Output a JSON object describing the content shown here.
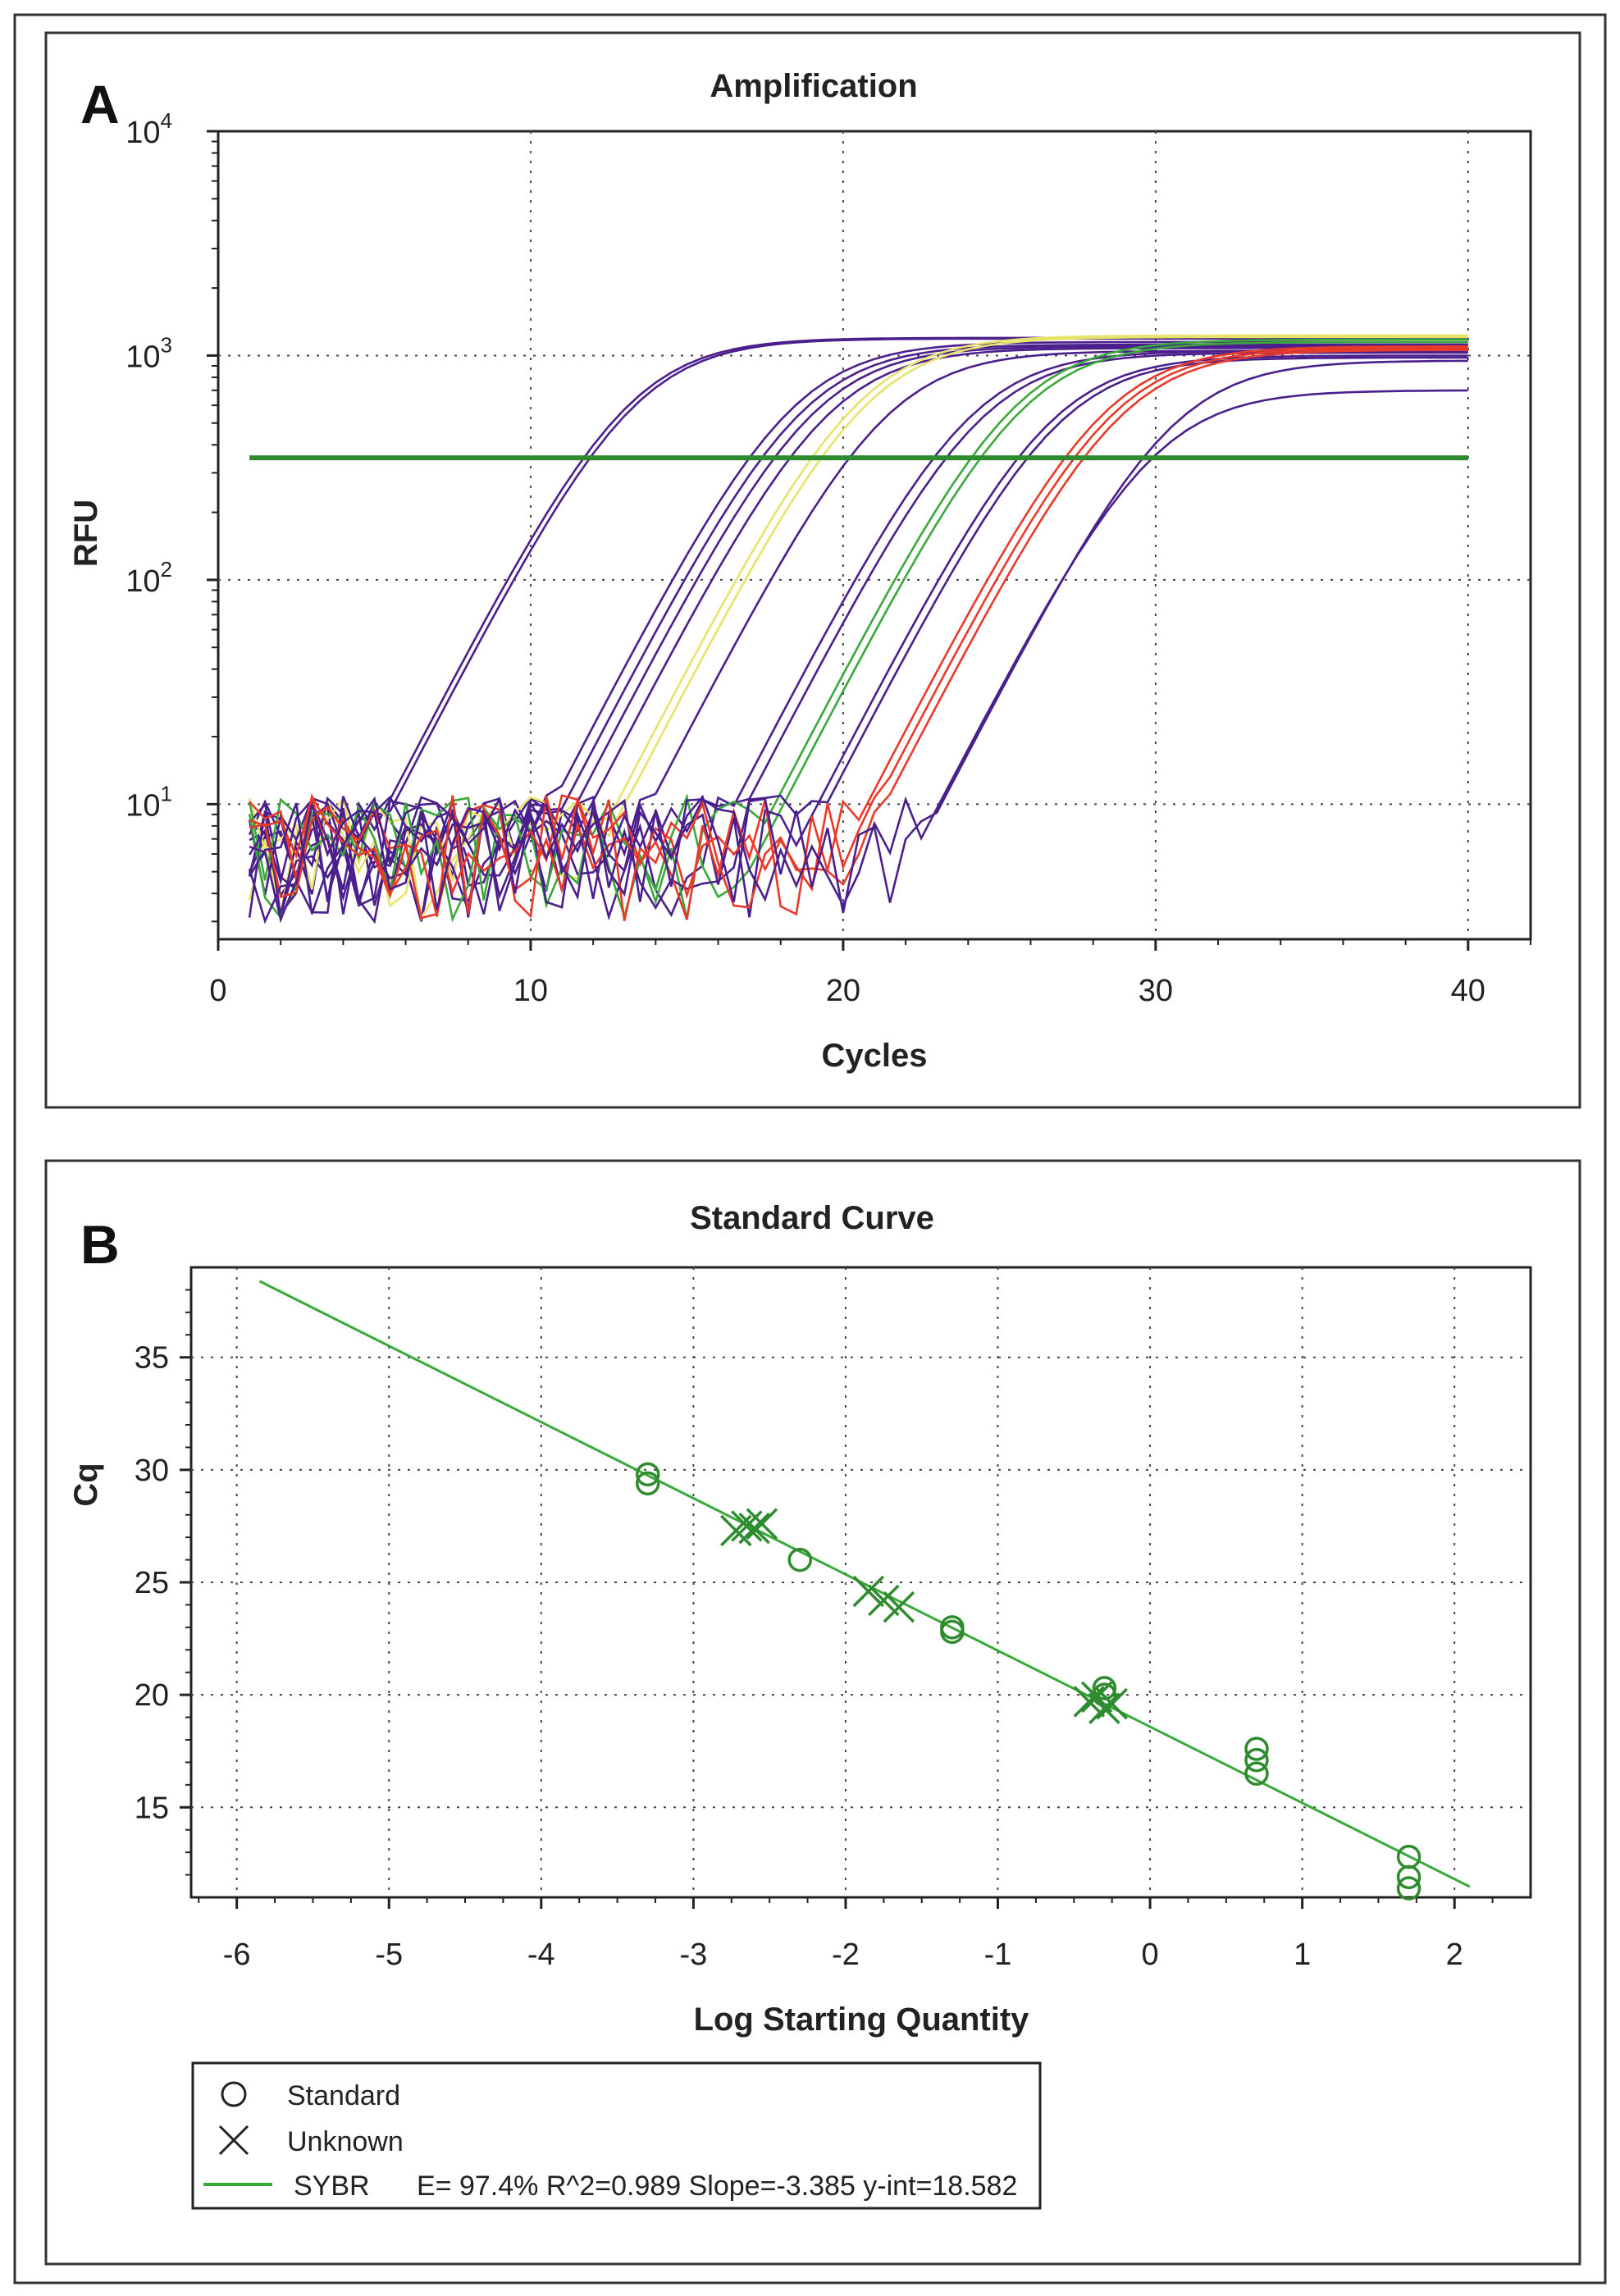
{
  "panel_a": {
    "letter": "A",
    "title": "Amplification",
    "xlabel": "Cycles",
    "ylabel": "RFU",
    "x_ticks": [
      "0",
      "10",
      "20",
      "30",
      "40"
    ],
    "y_ticks": [
      {
        "base": "10",
        "exp": "1"
      },
      {
        "base": "10",
        "exp": "2"
      },
      {
        "base": "10",
        "exp": "3"
      },
      {
        "base": "10",
        "exp": "4"
      }
    ]
  },
  "panel_b": {
    "letter": "B",
    "title": "Standard Curve",
    "xlabel": "Log Starting Quantity",
    "ylabel": "Cq",
    "x_ticks": [
      "-6",
      "-5",
      "-4",
      "-3",
      "-2",
      "-1",
      "0",
      "1",
      "2"
    ],
    "y_ticks": [
      "15",
      "20",
      "25",
      "30",
      "35"
    ],
    "legend": {
      "standard_label": "Standard",
      "unknown_label": "Unknown",
      "fit_name": "SYBR",
      "fit_stats": "E= 97.4% R^2=0.989 Slope=-3.385 y-int=18.582"
    }
  },
  "chart_data": [
    {
      "type": "line",
      "title": "Amplification",
      "xlabel": "Cycles",
      "ylabel": "RFU",
      "xlim": [
        0,
        42
      ],
      "ylim": [
        2.5,
        10000
      ],
      "yscale": "log",
      "grid": true,
      "threshold": 350,
      "threshold_color": "#2e8b2e",
      "series": [
        {
          "color": "#4b1f8c",
          "ct": 11.7,
          "plateau": 1200
        },
        {
          "color": "#4b1f8c",
          "ct": 11.9,
          "plateau": 1190
        },
        {
          "color": "#4b1f8c",
          "ct": 17.0,
          "plateau": 1150
        },
        {
          "color": "#4b1f8c",
          "ct": 17.4,
          "plateau": 1120
        },
        {
          "color": "#4b1f8c",
          "ct": 17.8,
          "plateau": 1100
        },
        {
          "color": "#4b1f8c",
          "ct": 18.3,
          "plateau": 1080
        },
        {
          "color": "#e8e36a",
          "ct": 19.0,
          "plateau": 1230
        },
        {
          "color": "#e8e36a",
          "ct": 19.3,
          "plateau": 1210
        },
        {
          "color": "#4b1f8c",
          "ct": 20.2,
          "plateau": 1050
        },
        {
          "color": "#4b1f8c",
          "ct": 22.9,
          "plateau": 1050
        },
        {
          "color": "#4b1f8c",
          "ct": 23.3,
          "plateau": 1030
        },
        {
          "color": "#3aa83a",
          "ct": 24.1,
          "plateau": 1180
        },
        {
          "color": "#3aa83a",
          "ct": 24.4,
          "plateau": 1150
        },
        {
          "color": "#4b1f8c",
          "ct": 25.6,
          "plateau": 1000
        },
        {
          "color": "#4b1f8c",
          "ct": 25.9,
          "plateau": 980
        },
        {
          "color": "#e83a2a",
          "ct": 27.1,
          "plateau": 1100
        },
        {
          "color": "#e83a2a",
          "ct": 27.4,
          "plateau": 1080
        },
        {
          "color": "#e83a2a",
          "ct": 27.7,
          "plateau": 1060
        },
        {
          "color": "#4b1f8c",
          "ct": 29.6,
          "plateau": 950
        },
        {
          "color": "#4b1f8c",
          "ct": 29.9,
          "plateau": 700
        }
      ]
    },
    {
      "type": "scatter",
      "title": "Standard Curve",
      "xlabel": "Log Starting Quantity",
      "ylabel": "Cq",
      "xlim": [
        -6.3,
        2.5
      ],
      "ylim": [
        11,
        39
      ],
      "grid": true,
      "color": "#2e8b2e",
      "series": [
        {
          "name": "Standard",
          "marker": "circle",
          "points": [
            [
              -3.3,
              29.4
            ],
            [
              -3.3,
              29.8
            ],
            [
              -2.3,
              26.0
            ],
            [
              -1.3,
              22.8
            ],
            [
              -1.3,
              23.0
            ],
            [
              -0.3,
              20.0
            ],
            [
              -0.3,
              20.3
            ],
            [
              0.7,
              16.5
            ],
            [
              0.7,
              17.1
            ],
            [
              0.7,
              17.6
            ],
            [
              1.7,
              11.4
            ],
            [
              1.7,
              11.9
            ],
            [
              1.7,
              12.8
            ]
          ]
        },
        {
          "name": "Unknown",
          "marker": "x",
          "points": [
            [
              -2.72,
              27.3
            ],
            [
              -2.65,
              27.5
            ],
            [
              -2.6,
              27.4
            ],
            [
              -2.55,
              27.6
            ],
            [
              -1.85,
              24.6
            ],
            [
              -1.75,
              24.2
            ],
            [
              -1.65,
              23.9
            ],
            [
              -0.4,
              19.7
            ],
            [
              -0.35,
              19.9
            ],
            [
              -0.3,
              19.4
            ],
            [
              -0.25,
              19.6
            ]
          ]
        },
        {
          "name": "SYBR",
          "marker": "line",
          "fit": {
            "slope": -3.385,
            "intercept": 18.582
          },
          "x_range": [
            -5.85,
            2.1
          ]
        }
      ]
    }
  ]
}
